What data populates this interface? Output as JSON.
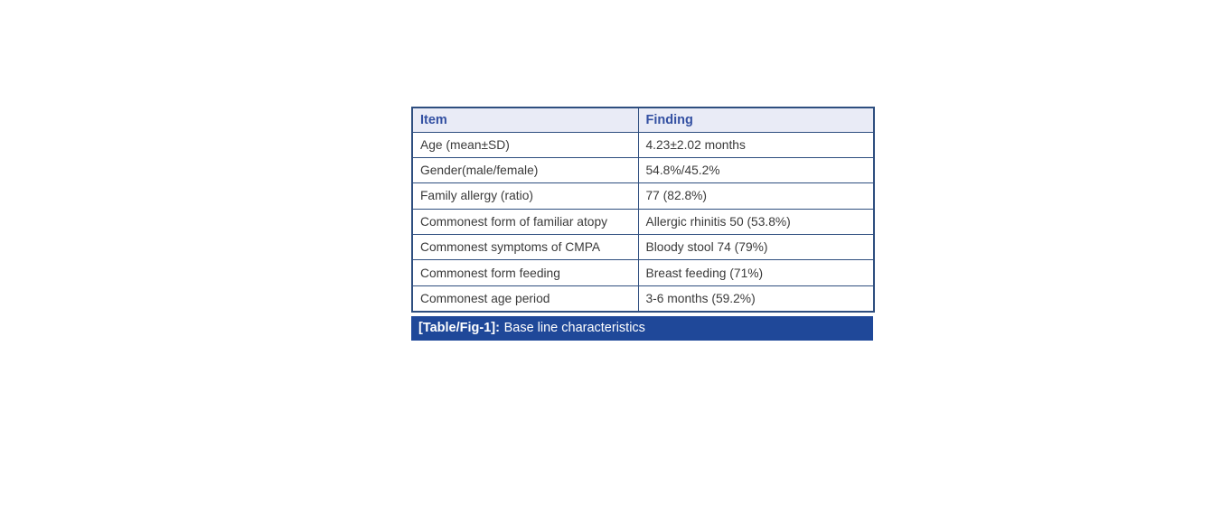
{
  "table": {
    "header": {
      "item": "Item",
      "finding": "Finding"
    },
    "rows": [
      {
        "item": "Age (mean±SD)",
        "finding": "4.23±2.02 months"
      },
      {
        "item": "Gender(male/female)",
        "finding": "54.8%/45.2%"
      },
      {
        "item": "Family allergy (ratio)",
        "finding": "77 (82.8%)"
      },
      {
        "item": "Commonest form of familiar atopy",
        "finding": "Allergic rhinitis 50 (53.8%)"
      },
      {
        "item": "Commonest symptoms of CMPA",
        "finding": "Bloody stool 74 (79%)"
      },
      {
        "item": "Commonest form feeding",
        "finding": "Breast feeding (71%)"
      },
      {
        "item": "Commonest age period",
        "finding": "3-6 months (59.2%)"
      }
    ],
    "caption": {
      "label": "[Table/Fig-1]:",
      "text": "Base line characteristics"
    },
    "colors": {
      "border": "#2e4e7f",
      "header_background": "#e9ebf6",
      "header_text": "#3350a2",
      "body_text": "#3a3a3a",
      "caption_background": "#1f4899",
      "caption_text": "#ffffff"
    }
  }
}
